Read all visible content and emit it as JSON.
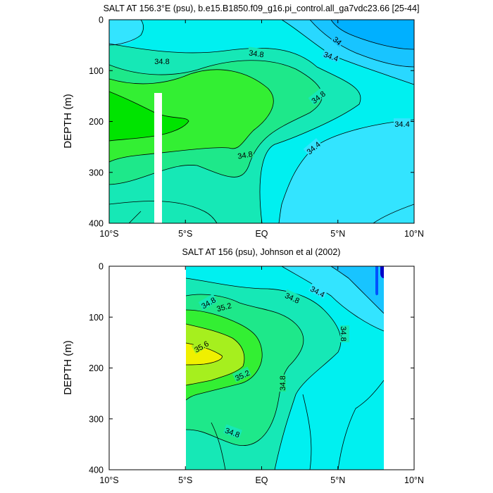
{
  "chart_data": [
    {
      "type": "contour",
      "title": "SALT AT 156.3°E (psu), b.e15.B1850.f09_g16.pi_control.all_ga7vdc23.66 [25-44]",
      "ylabel": "DEPTH (m)",
      "xlim": [
        -10,
        10
      ],
      "ylim": [
        400,
        0
      ],
      "x_ticks": [
        {
          "value": -10,
          "label": "10°S"
        },
        {
          "value": -5,
          "label": "5°S"
        },
        {
          "value": 0,
          "label": "EQ"
        },
        {
          "value": 5,
          "label": "5°N"
        },
        {
          "value": 10,
          "label": "10°N"
        }
      ],
      "y_ticks": [
        0,
        100,
        200,
        300,
        400
      ],
      "contour_labels": [
        {
          "text": "34.8",
          "x": -6.0,
          "y": 80
        },
        {
          "text": "34.8",
          "x": 0.0,
          "y": 65
        },
        {
          "text": "34.4",
          "x": 4.8,
          "y": 68
        },
        {
          "text": "34",
          "x": 5.5,
          "y": 40
        },
        {
          "text": "34.8",
          "x": 3.7,
          "y": 145
        },
        {
          "text": "34.4",
          "x": 9.5,
          "y": 200
        },
        {
          "text": "34.8",
          "x": -1.5,
          "y": 265
        },
        {
          "text": "34.4",
          "x": 3.3,
          "y": 255
        }
      ]
    },
    {
      "type": "contour",
      "title": "SALT AT 156 (psu), Johnson et al (2002)",
      "ylabel": "DEPTH (m)",
      "xlim": [
        -10,
        10
      ],
      "ylim": [
        400,
        0
      ],
      "data_extent_x": [
        -5,
        8
      ],
      "x_ticks": [
        {
          "value": -10,
          "label": "10°S"
        },
        {
          "value": -5,
          "label": "5°S"
        },
        {
          "value": 0,
          "label": "EQ"
        },
        {
          "value": 5,
          "label": "5°N"
        },
        {
          "value": 10,
          "label": "10°N"
        }
      ],
      "y_ticks": [
        0,
        100,
        200,
        300,
        400
      ],
      "contour_labels": [
        {
          "text": "34.8",
          "x": -4.3,
          "y": 70
        },
        {
          "text": "34.8",
          "x": 1.9,
          "y": 60
        },
        {
          "text": "34.4",
          "x": 3.5,
          "y": 50
        },
        {
          "text": "35.2",
          "x": -3.1,
          "y": 105
        },
        {
          "text": "35.6",
          "x": -4.4,
          "y": 160
        },
        {
          "text": "35.2",
          "x": -1.6,
          "y": 210
        },
        {
          "text": "34.8",
          "x": 5.2,
          "y": 130
        },
        {
          "text": "34.8",
          "x": 1.3,
          "y": 225
        },
        {
          "text": "34.8",
          "x": -1.9,
          "y": 325
        }
      ]
    }
  ]
}
